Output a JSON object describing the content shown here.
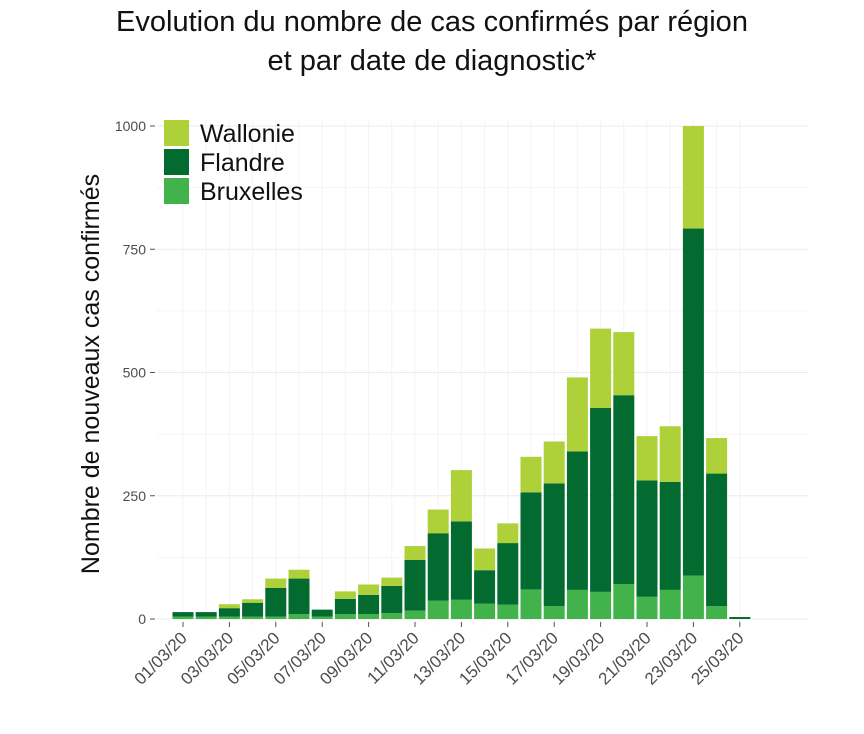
{
  "chart_data": {
    "type": "bar",
    "stacked": true,
    "title": [
      "Evolution du nombre de cas confirmés par région",
      "et par date de diagnostic*"
    ],
    "xlabel": "",
    "ylabel": "Nombre de nouveaux cas confirmés",
    "ylim": [
      0,
      1000
    ],
    "yticks": [
      0,
      250,
      500,
      750,
      1000
    ],
    "grid": true,
    "legend_position": "top-left",
    "categories": [
      "01/03/20",
      "02/03/20",
      "03/03/20",
      "04/03/20",
      "05/03/20",
      "06/03/20",
      "07/03/20",
      "08/03/20",
      "09/03/20",
      "10/03/20",
      "11/03/20",
      "12/03/20",
      "13/03/20",
      "14/03/20",
      "15/03/20",
      "16/03/20",
      "17/03/20",
      "18/03/20",
      "19/03/20",
      "20/03/20",
      "21/03/20",
      "22/03/20",
      "23/03/20",
      "24/03/20",
      "25/03/20"
    ],
    "xtick_labels": [
      "01/03/20",
      "03/03/20",
      "05/03/20",
      "07/03/20",
      "09/03/20",
      "11/03/20",
      "13/03/20",
      "15/03/20",
      "17/03/20",
      "19/03/20",
      "21/03/20",
      "23/03/20",
      "25/03/20"
    ],
    "series": [
      {
        "name": "Bruxelles",
        "color": "#41b34a",
        "values": [
          5,
          5,
          5,
          5,
          5,
          10,
          5,
          10,
          10,
          12,
          17,
          37,
          39,
          31,
          29,
          60,
          26,
          59,
          55,
          71,
          45,
          59,
          88,
          26,
          0
        ]
      },
      {
        "name": "Flandre",
        "color": "#046b30",
        "values": [
          9,
          9,
          17,
          28,
          58,
          72,
          14,
          31,
          39,
          55,
          103,
          137,
          159,
          68,
          125,
          197,
          249,
          281,
          373,
          383,
          236,
          219,
          704,
          269,
          4
        ]
      },
      {
        "name": "Wallonie",
        "color": "#aed13a",
        "values": [
          0,
          0,
          8,
          7,
          19,
          18,
          0,
          15,
          21,
          17,
          28,
          48,
          104,
          44,
          40,
          72,
          85,
          150,
          161,
          128,
          90,
          113,
          208,
          72,
          0
        ]
      }
    ]
  }
}
